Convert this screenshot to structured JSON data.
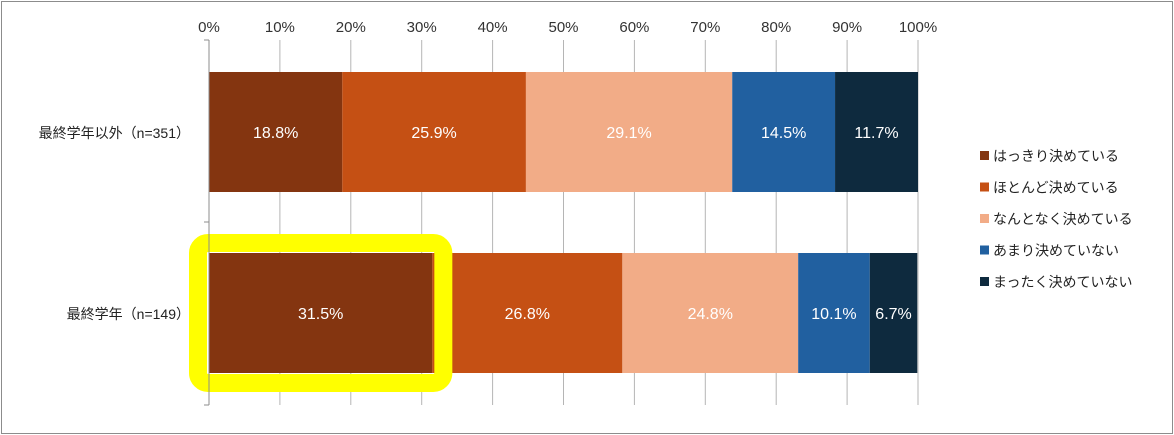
{
  "chart_data": {
    "type": "bar",
    "orientation": "horizontal",
    "stacked": true,
    "percent": true,
    "title": "",
    "xlabel": "",
    "ylabel": "",
    "xlim": [
      0,
      100
    ],
    "x_ticks": [
      "0%",
      "10%",
      "20%",
      "30%",
      "40%",
      "50%",
      "60%",
      "70%",
      "80%",
      "90%",
      "100%"
    ],
    "grid": true,
    "legend_position": "right",
    "categories": [
      "最終学年以外（n=351）",
      "最終学年（n=149）"
    ],
    "series": [
      {
        "name": "はっきり決めている",
        "color": "#843510",
        "values": [
          18.8,
          31.5
        ],
        "labels": [
          "18.8%",
          "31.5%"
        ]
      },
      {
        "name": "ほとんど決めている",
        "color": "#c55014",
        "values": [
          25.9,
          26.8
        ],
        "labels": [
          "25.9%",
          "26.8%"
        ]
      },
      {
        "name": "なんとなく決めている",
        "color": "#f2ac87",
        "values": [
          29.1,
          24.8
        ],
        "labels": [
          "29.1%",
          "24.8%"
        ]
      },
      {
        "name": "あまり決めていない",
        "color": "#2160a0",
        "values": [
          14.5,
          10.1
        ],
        "labels": [
          "14.5%",
          "10.1%"
        ]
      },
      {
        "name": "まったく決めていない",
        "color": "#0e2a3e",
        "values": [
          11.7,
          6.7
        ],
        "labels": [
          "11.7%",
          "6.7%"
        ]
      }
    ],
    "highlight": {
      "category_index": 1,
      "series_index": 0,
      "color": "#ffff00"
    }
  }
}
